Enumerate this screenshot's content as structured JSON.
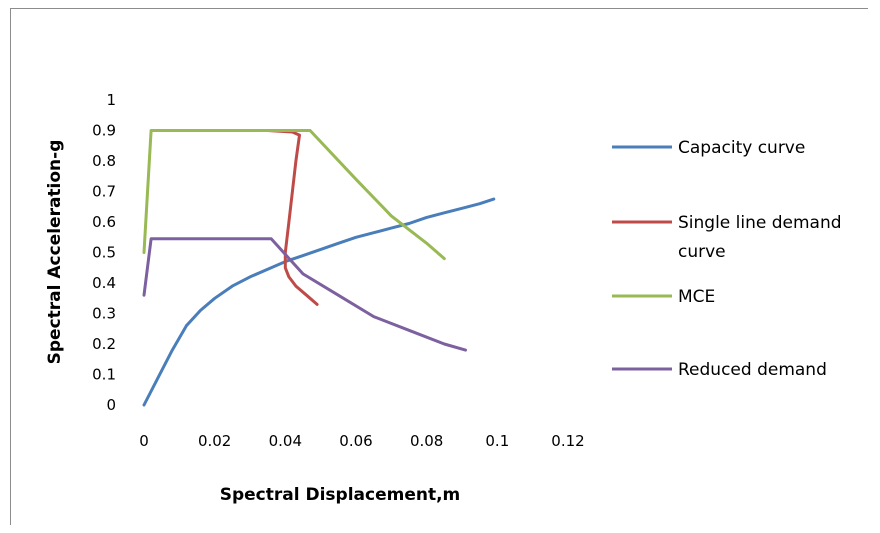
{
  "chart_data": {
    "type": "line",
    "title": "",
    "xlabel": "Spectral Displacement,m",
    "ylabel": "Spectral Acceleration-g",
    "xlim": [
      0,
      0.12
    ],
    "ylim": [
      0,
      1
    ],
    "xticks": [
      "0",
      "0.02",
      "0.04",
      "0.06",
      "0.08",
      "0.1",
      "0.12"
    ],
    "yticks": [
      "0",
      "0.1",
      "0.2",
      "0.3",
      "0.4",
      "0.5",
      "0.6",
      "0.7",
      "0.8",
      "0.9",
      "1"
    ],
    "grid": false,
    "legend_position": "right",
    "series": [
      {
        "name": "Capacity curve",
        "color": "#4a7ebb",
        "x": [
          0,
          0.004,
          0.008,
          0.012,
          0.016,
          0.02,
          0.025,
          0.03,
          0.035,
          0.04,
          0.045,
          0.05,
          0.055,
          0.06,
          0.065,
          0.07,
          0.075,
          0.08,
          0.085,
          0.09,
          0.095,
          0.099
        ],
        "y": [
          0,
          0.09,
          0.18,
          0.26,
          0.31,
          0.35,
          0.39,
          0.42,
          0.445,
          0.47,
          0.49,
          0.51,
          0.53,
          0.55,
          0.565,
          0.58,
          0.595,
          0.615,
          0.63,
          0.645,
          0.66,
          0.675
        ]
      },
      {
        "name": "Single line demand curve",
        "color": "#be4b48",
        "x": [
          0.035,
          0.042,
          0.044,
          0.043,
          0.042,
          0.041,
          0.04,
          0.04,
          0.041,
          0.043,
          0.046,
          0.049
        ],
        "y": [
          0.9,
          0.895,
          0.885,
          0.8,
          0.7,
          0.6,
          0.5,
          0.45,
          0.42,
          0.39,
          0.36,
          0.33
        ]
      },
      {
        "name": "MCE",
        "color": "#98b954",
        "x": [
          0,
          0.002,
          0.047,
          0.06,
          0.07,
          0.08,
          0.085
        ],
        "y": [
          0.5,
          0.9,
          0.9,
          0.74,
          0.62,
          0.53,
          0.48
        ]
      },
      {
        "name": "Reduced demand",
        "color": "#7d60a0",
        "x": [
          0,
          0.002,
          0.036,
          0.045,
          0.055,
          0.065,
          0.075,
          0.085,
          0.091
        ],
        "y": [
          0.36,
          0.545,
          0.545,
          0.43,
          0.36,
          0.29,
          0.245,
          0.2,
          0.18
        ]
      }
    ]
  }
}
